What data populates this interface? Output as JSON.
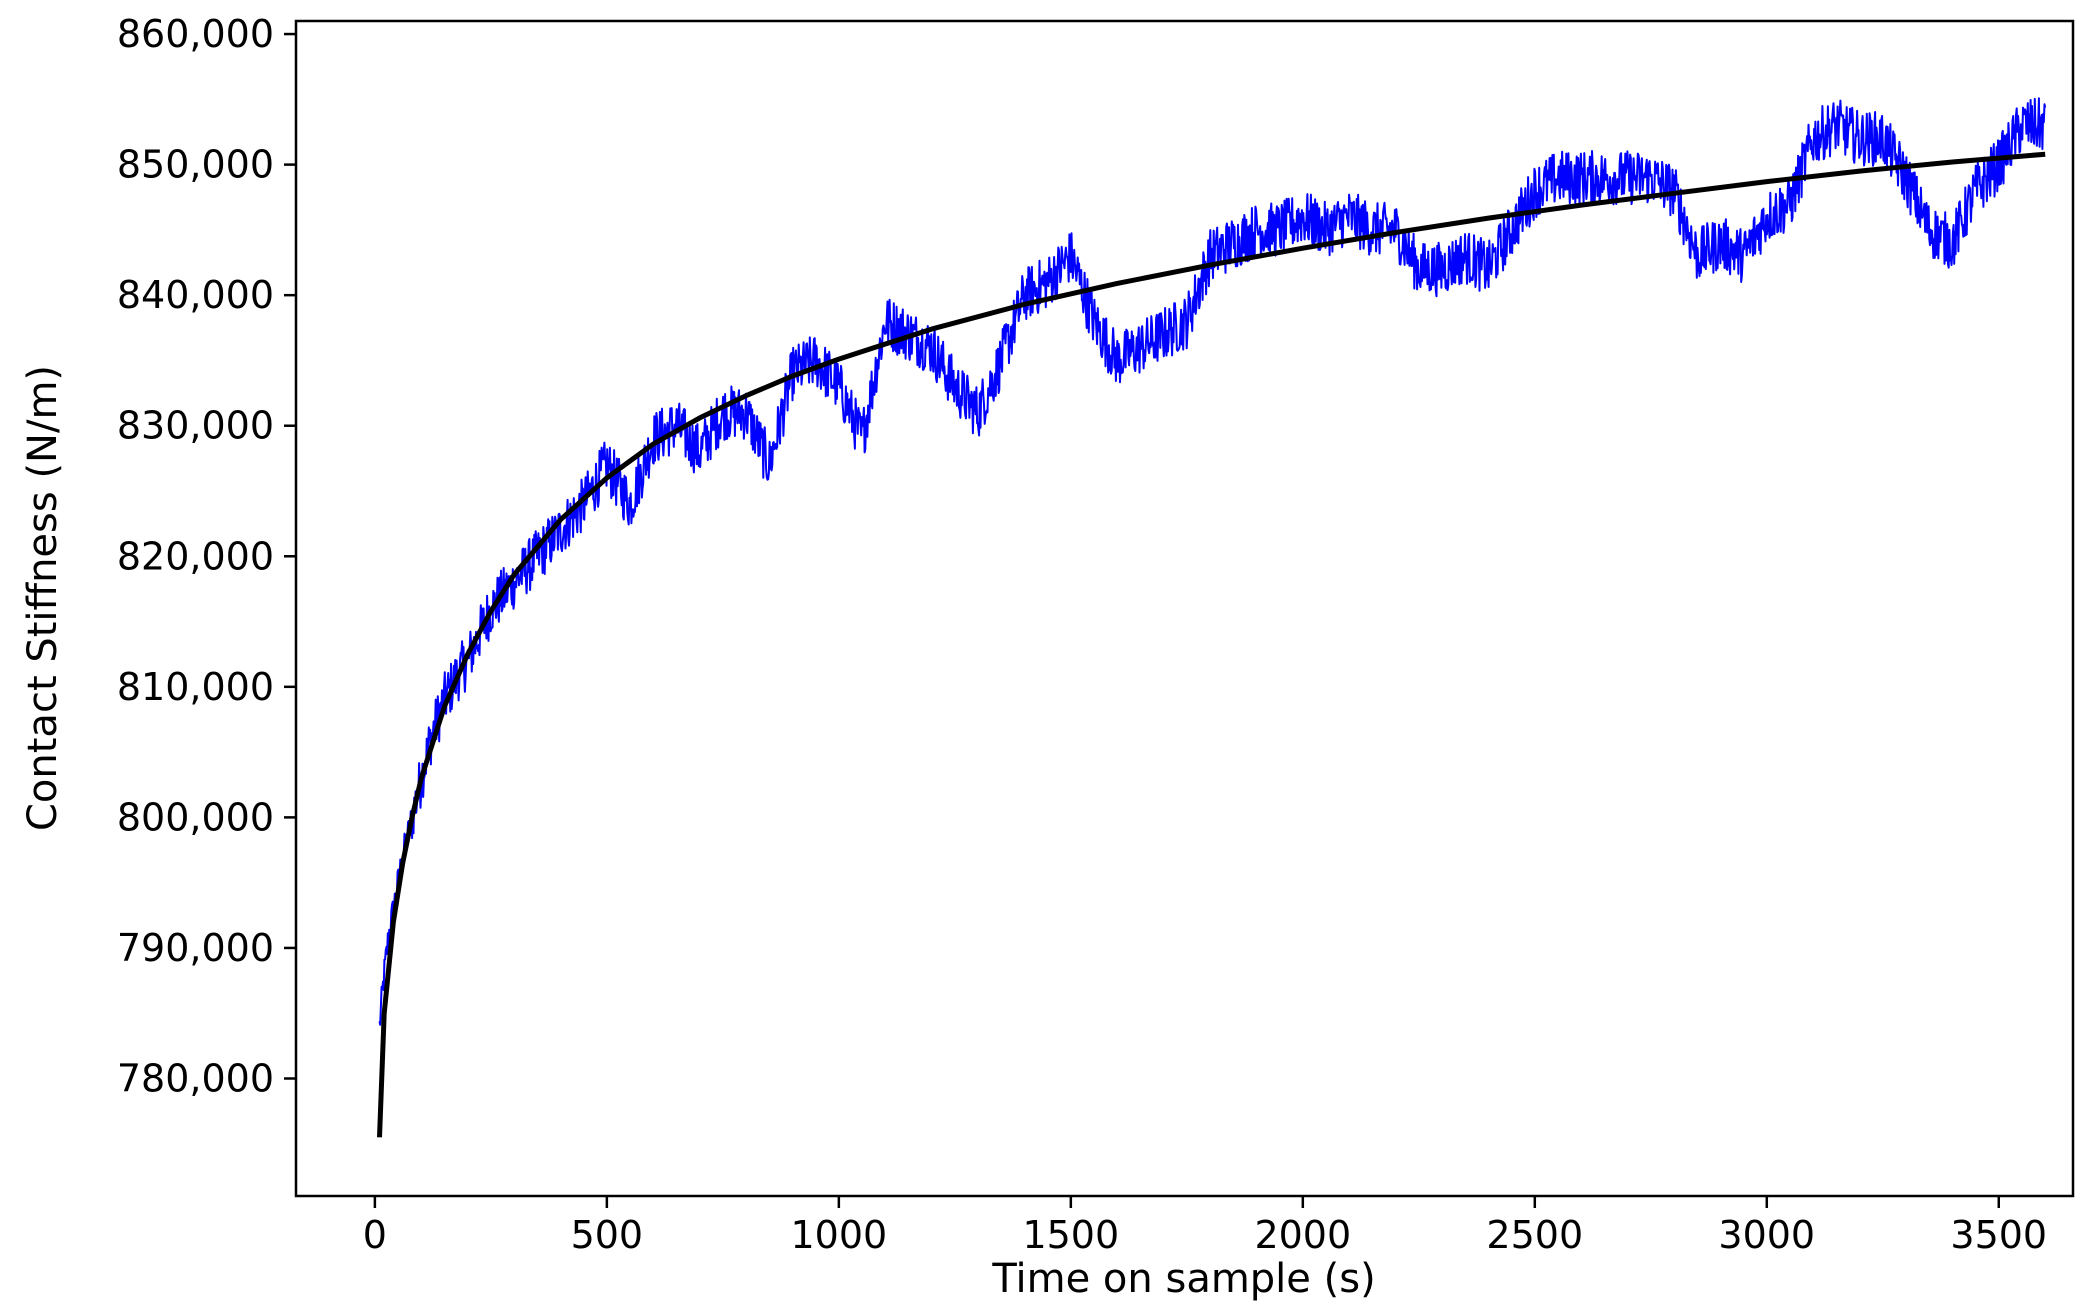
{
  "chart_data": {
    "type": "line",
    "xlabel": "Time on sample (s)",
    "ylabel": "Contact Stiffness (N/m)",
    "xlim": [
      -170,
      3660
    ],
    "ylim": [
      771000,
      861000
    ],
    "grid": false,
    "x_ticks": [
      0,
      500,
      1000,
      1500,
      2000,
      2500,
      3000,
      3500
    ],
    "x_tick_labels": [
      "0",
      "500",
      "1000",
      "1500",
      "2000",
      "2500",
      "3000",
      "3500"
    ],
    "y_ticks": [
      780000,
      790000,
      800000,
      810000,
      820000,
      830000,
      840000,
      850000,
      860000
    ],
    "y_tick_labels": [
      "780,000",
      "790,000",
      "800,000",
      "810,000",
      "820,000",
      "830,000",
      "840,000",
      "850,000",
      "860,000"
    ],
    "series": [
      {
        "kind": "measured",
        "color": "#0000ff",
        "x": [
          10,
          20,
          30,
          40,
          50,
          60,
          80,
          100,
          120,
          150,
          180,
          200,
          250,
          300,
          350,
          400,
          450,
          500,
          550,
          600,
          650,
          700,
          750,
          800,
          850,
          900,
          950,
          1000,
          1050,
          1100,
          1150,
          1200,
          1250,
          1300,
          1350,
          1400,
          1450,
          1500,
          1550,
          1600,
          1650,
          1700,
          1750,
          1800,
          1850,
          1900,
          1950,
          2000,
          2050,
          2100,
          2150,
          2200,
          2250,
          2300,
          2350,
          2400,
          2450,
          2500,
          2550,
          2600,
          2650,
          2700,
          2750,
          2800,
          2850,
          2900,
          2950,
          3000,
          3050,
          3100,
          3150,
          3200,
          3250,
          3300,
          3350,
          3400,
          3450,
          3500,
          3550,
          3600
        ],
        "y": [
          784000,
          788000,
          791000,
          793000,
          795000,
          797000,
          800000,
          803000,
          806000,
          809000,
          811000,
          812000,
          816000,
          818000,
          820000,
          822000,
          824000,
          827000,
          824000,
          829000,
          830000,
          828000,
          831000,
          831000,
          827000,
          834000,
          835000,
          833000,
          829000,
          838000,
          837000,
          836000,
          833000,
          831000,
          835000,
          840000,
          841000,
          843000,
          838000,
          835000,
          836000,
          837000,
          838000,
          843000,
          844000,
          845000,
          845000,
          846000,
          845000,
          846000,
          845000,
          845000,
          842000,
          842000,
          843000,
          842000,
          845000,
          848000,
          849000,
          849000,
          849000,
          849000,
          849000,
          848000,
          843000,
          844000,
          843000,
          846000,
          847000,
          852000,
          853000,
          852000,
          852000,
          849000,
          845000,
          844000,
          848000,
          850000,
          853000,
          853000
        ]
      },
      {
        "kind": "fit",
        "color": "#000000",
        "x": [
          10,
          20,
          40,
          60,
          80,
          100,
          150,
          200,
          250,
          300,
          400,
          500,
          600,
          700,
          800,
          900,
          1000,
          1200,
          1400,
          1600,
          1800,
          2000,
          2200,
          2400,
          2600,
          2800,
          3000,
          3200,
          3400,
          3600
        ],
        "y": [
          775500,
          785000,
          792000,
          796500,
          800000,
          803000,
          808500,
          812500,
          815800,
          818600,
          822800,
          826000,
          828600,
          830600,
          832300,
          833800,
          835100,
          837400,
          839300,
          840900,
          842300,
          843600,
          844800,
          845900,
          846900,
          847800,
          848700,
          849500,
          850200,
          850800
        ]
      }
    ]
  }
}
